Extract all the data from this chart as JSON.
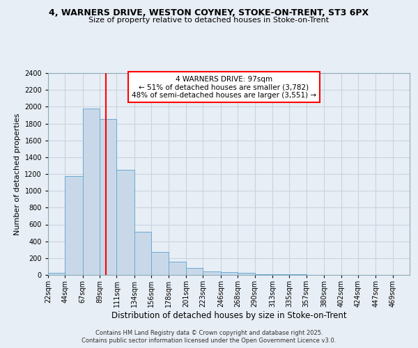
{
  "title": "4, WARNERS DRIVE, WESTON COYNEY, STOKE-ON-TRENT, ST3 6PX",
  "subtitle": "Size of property relative to detached houses in Stoke-on-Trent",
  "xlabel": "Distribution of detached houses by size in Stoke-on-Trent",
  "ylabel": "Number of detached properties",
  "bin_labels": [
    "22sqm",
    "44sqm",
    "67sqm",
    "89sqm",
    "111sqm",
    "134sqm",
    "156sqm",
    "178sqm",
    "201sqm",
    "223sqm",
    "246sqm",
    "268sqm",
    "290sqm",
    "313sqm",
    "335sqm",
    "357sqm",
    "380sqm",
    "402sqm",
    "424sqm",
    "447sqm",
    "469sqm"
  ],
  "bin_edges": [
    22,
    44,
    67,
    89,
    111,
    134,
    156,
    178,
    201,
    223,
    246,
    268,
    290,
    313,
    335,
    357,
    380,
    402,
    424,
    447,
    469
  ],
  "values": [
    22,
    1175,
    1975,
    1850,
    1250,
    510,
    270,
    155,
    85,
    45,
    30,
    25,
    10,
    5,
    5,
    3,
    2,
    2,
    1,
    1,
    0
  ],
  "bar_color": "#c8d8e8",
  "bar_edge_color": "#6aaad4",
  "property_size": 97,
  "vline_color": "red",
  "annotation_line1": "4 WARNERS DRIVE: 97sqm",
  "annotation_line2": "← 51% of detached houses are smaller (3,782)",
  "annotation_line3": "48% of semi-detached houses are larger (3,551) →",
  "annotation_box_color": "white",
  "annotation_box_edge": "red",
  "ylim": [
    0,
    2400
  ],
  "yticks": [
    0,
    200,
    400,
    600,
    800,
    1000,
    1200,
    1400,
    1600,
    1800,
    2000,
    2200,
    2400
  ],
  "bg_color": "#e8eef5",
  "grid_color": "#c8d4e0",
  "footer_line1": "Contains HM Land Registry data © Crown copyright and database right 2025.",
  "footer_line2": "Contains public sector information licensed under the Open Government Licence v3.0.",
  "title_fontsize": 9,
  "subtitle_fontsize": 8,
  "ylabel_fontsize": 8,
  "xlabel_fontsize": 8.5,
  "tick_fontsize": 7,
  "annot_fontsize": 7.5,
  "footer_fontsize": 6
}
